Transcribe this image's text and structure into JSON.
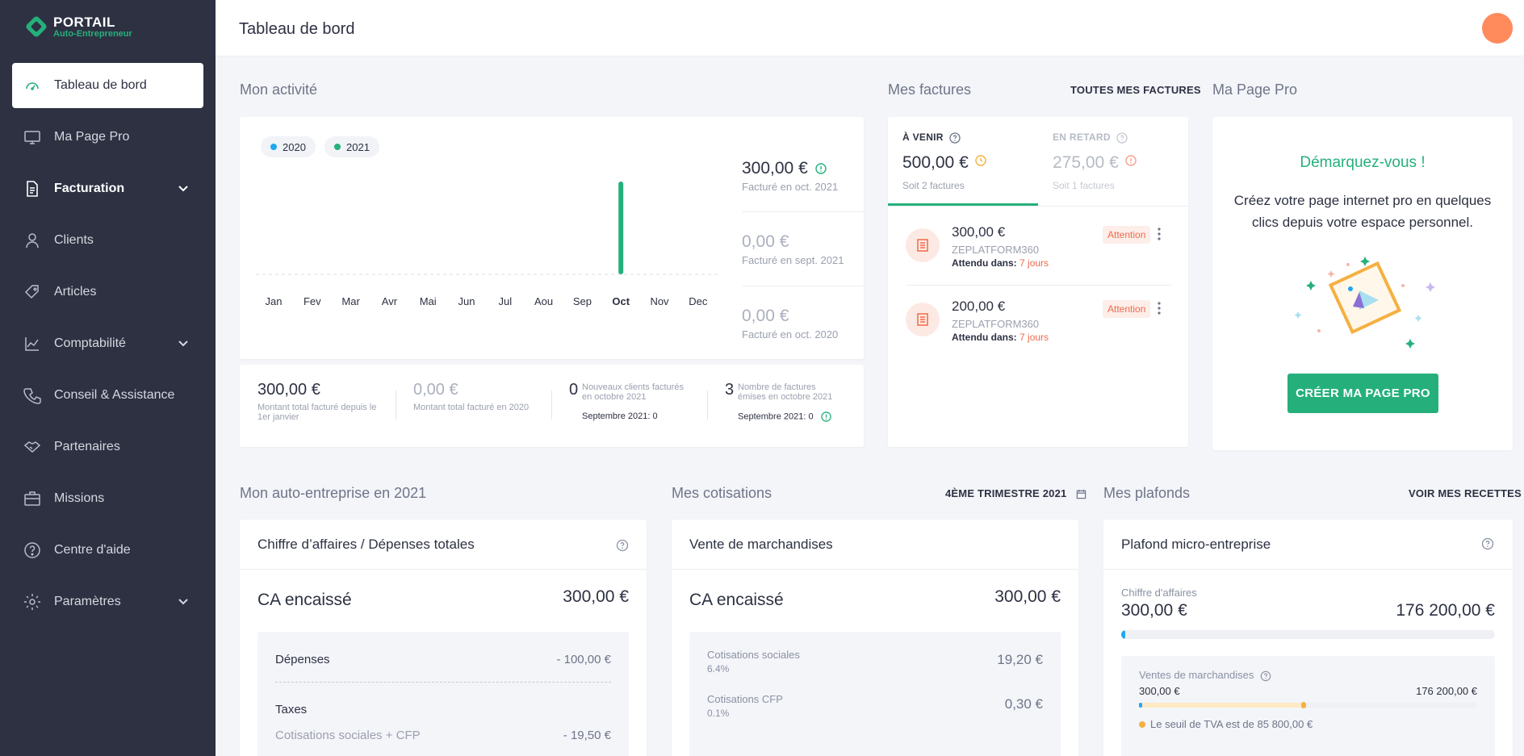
{
  "brand": {
    "title": "PORTAIL",
    "subtitle": "Auto-Entrepreneur",
    "accent": "#25b07b"
  },
  "sidebar": {
    "items": [
      {
        "label": "Tableau de bord",
        "icon": "dashboard-icon"
      },
      {
        "label": "Ma Page Pro",
        "icon": "monitor-icon"
      },
      {
        "label": "Facturation",
        "icon": "document-icon"
      },
      {
        "label": "Clients",
        "icon": "user-icon"
      },
      {
        "label": "Articles",
        "icon": "tag-icon"
      },
      {
        "label": "Comptabilité",
        "icon": "chart-icon"
      },
      {
        "label": "Conseil & Assistance",
        "icon": "phone-icon"
      },
      {
        "label": "Partenaires",
        "icon": "handshake-icon"
      },
      {
        "label": "Missions",
        "icon": "briefcase-icon"
      },
      {
        "label": "Centre d'aide",
        "icon": "help-icon"
      },
      {
        "label": "Paramètres",
        "icon": "gear-icon"
      }
    ]
  },
  "header": {
    "title": "Tableau de bord"
  },
  "activite": {
    "title": "Mon activité",
    "legend": [
      "2020",
      "2021"
    ],
    "months": [
      "Jan",
      "Fev",
      "Mar",
      "Avr",
      "Mai",
      "Jun",
      "Jul",
      "Aou",
      "Sep",
      "Oct",
      "Nov",
      "Dec"
    ],
    "stats": [
      {
        "value": "300,00 €",
        "label": "Facturé en oct. 2021"
      },
      {
        "value": "0,00 €",
        "label": "Facturé en sept. 2021"
      },
      {
        "value": "0,00 €",
        "label": "Facturé en oct. 2020"
      }
    ],
    "bottom": {
      "total": "300,00 €",
      "total_label": "Montant total facturé depuis le 1er janvier",
      "total2020": "0,00 €",
      "total2020_label": "Montant total facturé en 2020",
      "clients_count": "0",
      "clients_label": "Nouveaux clients facturés en octobre 2021",
      "clients_prev": "Septembre 2021: 0",
      "factures_count": "3",
      "factures_label": "Nombre de factures émises en octobre 2021",
      "factures_prev": "Septembre 2021: 0"
    }
  },
  "chart_data": {
    "type": "bar",
    "categories": [
      "Jan",
      "Fev",
      "Mar",
      "Avr",
      "Mai",
      "Jun",
      "Jul",
      "Aou",
      "Sep",
      "Oct",
      "Nov",
      "Dec"
    ],
    "series": [
      {
        "name": "2020",
        "values": [
          0,
          0,
          0,
          0,
          0,
          0,
          0,
          0,
          0,
          0,
          0,
          0
        ],
        "color": "#1fa8f0"
      },
      {
        "name": "2021",
        "values": [
          0,
          0,
          0,
          0,
          0,
          0,
          0,
          0,
          0,
          300,
          0,
          0
        ],
        "color": "#25b07b"
      }
    ],
    "ylim": [
      0,
      300
    ]
  },
  "factures": {
    "title": "Mes factures",
    "link": "TOUTES MES FACTURES",
    "tab_a_venir": {
      "title": "À VENIR",
      "value": "500,00 €",
      "sub": "Soit 2 factures"
    },
    "tab_retard": {
      "title": "EN RETARD",
      "value": "275,00 €",
      "sub": "Soit 1 factures"
    },
    "items": [
      {
        "amount": "300,00 €",
        "company": "ZEPLATFORM360",
        "due_label": "Attendu dans:",
        "due_days": "7 jours",
        "badge": "Attention"
      },
      {
        "amount": "200,00 €",
        "company": "ZEPLATFORM360",
        "due_label": "Attendu dans:",
        "due_days": "7 jours",
        "badge": "Attention"
      }
    ]
  },
  "pagepro": {
    "title": "Ma Page Pro",
    "heading": "Démarquez-vous !",
    "text": "Créez votre page internet pro en quelques clics depuis votre espace personnel.",
    "button": "CRÉER MA PAGE PRO"
  },
  "autoentreprise": {
    "title": "Mon auto-entreprise en 2021",
    "card_title": "Chiffre d’affaires / Dépenses totales",
    "ca_label": "CA encaissé",
    "ca_value": "300,00 €",
    "depenses_label": "Dépenses",
    "depenses_value": "- 100,00 €",
    "taxes_label": "Taxes",
    "cotis_label": "Cotisations sociales + CFP",
    "cotis_value": "- 19,50 €"
  },
  "cotisations": {
    "title": "Mes cotisations",
    "period": "4ÈME TRIMESTRE 2021",
    "card_title": "Vente de marchandises",
    "ca_label": "CA encaissé",
    "ca_value": "300,00 €",
    "rows": [
      {
        "label": "Cotisations sociales",
        "rate": "6.4%",
        "value": "19,20 €"
      },
      {
        "label": "Cotisations CFP",
        "rate": "0.1%",
        "value": "0,30 €"
      }
    ]
  },
  "plafonds": {
    "title": "Mes plafonds",
    "link": "VOIR MES RECETTES",
    "card_title": "Plafond micro-entreprise",
    "ca_label": "Chiffre d'affaires",
    "ca_value": "300,00 €",
    "ca_max": "176 200,00 €",
    "ca_progress": 0.0017,
    "sub_label": "Ventes de marchandises",
    "sub_value": "300,00 €",
    "sub_max": "176 200,00 €",
    "tva_note": "Le seuil de TVA est de 85 800,00 €",
    "tva_progress": 0.487
  }
}
